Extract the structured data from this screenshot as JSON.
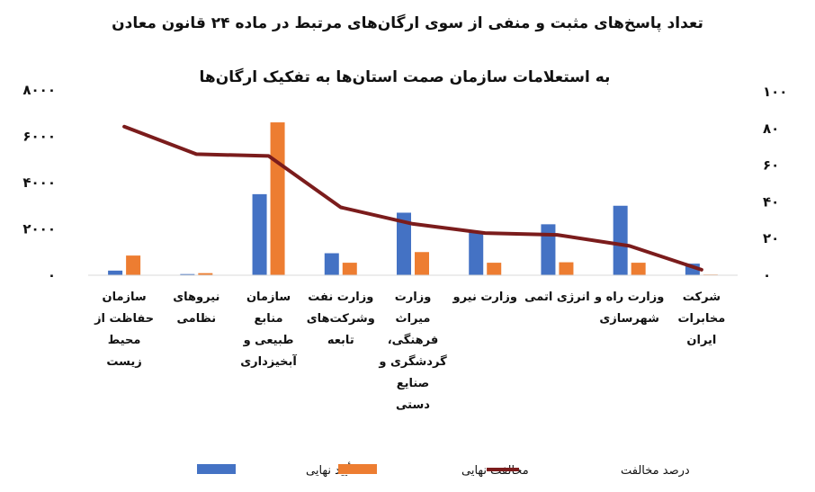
{
  "chart_data": {
    "type": "bar",
    "title": "تعداد پاسخ‌های مثبت و منفی از سوی ارگان‌های مرتبط در ماده ۲۴ قانون معادن",
    "subtitle": "به استعلامات سازمان صمت استان‌ها به تفکیک ارگان‌ها",
    "categories": [
      "سازمان حفاظت از محیط زیست",
      "نیروهای نظامی",
      "سازمان منابع طبیعی و آبخیزداری",
      "وزارت نفت وشرکت‌های تابعه",
      "وزارت میراث فرهنگی، گردشگری و صنایع دستی",
      "وزارت نیرو",
      "انرژی اتمی",
      "وزارت راه و شهرسازی",
      "شرکت مخابرات ایران"
    ],
    "category_lines": [
      [
        "سازمان",
        "حفاظت از",
        "محیط",
        "زیست"
      ],
      [
        "نیروهای",
        "نظامی"
      ],
      [
        "سازمان",
        "منابع",
        "طبیعی و",
        "آبخیزداری"
      ],
      [
        "وزارت نفت",
        "وشرکت‌های",
        "تابعه"
      ],
      [
        "وزارت",
        "میراث",
        "فرهنگی،",
        "گردشگری و",
        "صنایع",
        "دستی"
      ],
      [
        "وزارت نیرو"
      ],
      [
        "انرژی اتمی"
      ],
      [
        "وزارت راه و",
        "شهرسازی"
      ],
      [
        "شرکت",
        "مخابرات",
        "ایران"
      ]
    ],
    "series": [
      {
        "name": "تأیید نهایی",
        "axis": "left",
        "kind": "bar",
        "color": "#4472C4",
        "values": [
          200,
          50,
          3500,
          950,
          2700,
          1900,
          2200,
          3000,
          500
        ]
      },
      {
        "name": "مخالفت نهایی",
        "axis": "left",
        "kind": "bar",
        "color": "#ED7D31",
        "values": [
          850,
          90,
          6600,
          540,
          1000,
          540,
          560,
          540,
          30
        ]
      },
      {
        "name": "درصد مخالفت",
        "axis": "right",
        "kind": "line",
        "color": "#7B1C1C",
        "values": [
          81,
          66,
          65,
          37,
          28,
          23,
          22,
          16,
          3
        ]
      }
    ],
    "y_left": {
      "min": 0,
      "max": 8000,
      "ticks": [
        0,
        2000,
        4000,
        6000,
        8000
      ],
      "tick_labels": [
        "۰",
        "۲۰۰۰",
        "۴۰۰۰",
        "۶۰۰۰",
        "۸۰۰۰"
      ]
    },
    "y_right": {
      "min": 0,
      "max": 100,
      "ticks": [
        0,
        20,
        40,
        60,
        80,
        100
      ],
      "tick_labels": [
        "۰",
        "۲۰",
        "۴۰",
        "۶۰",
        "۸۰",
        "۱۰۰"
      ]
    },
    "legend_position": "bottom",
    "grid": false
  }
}
